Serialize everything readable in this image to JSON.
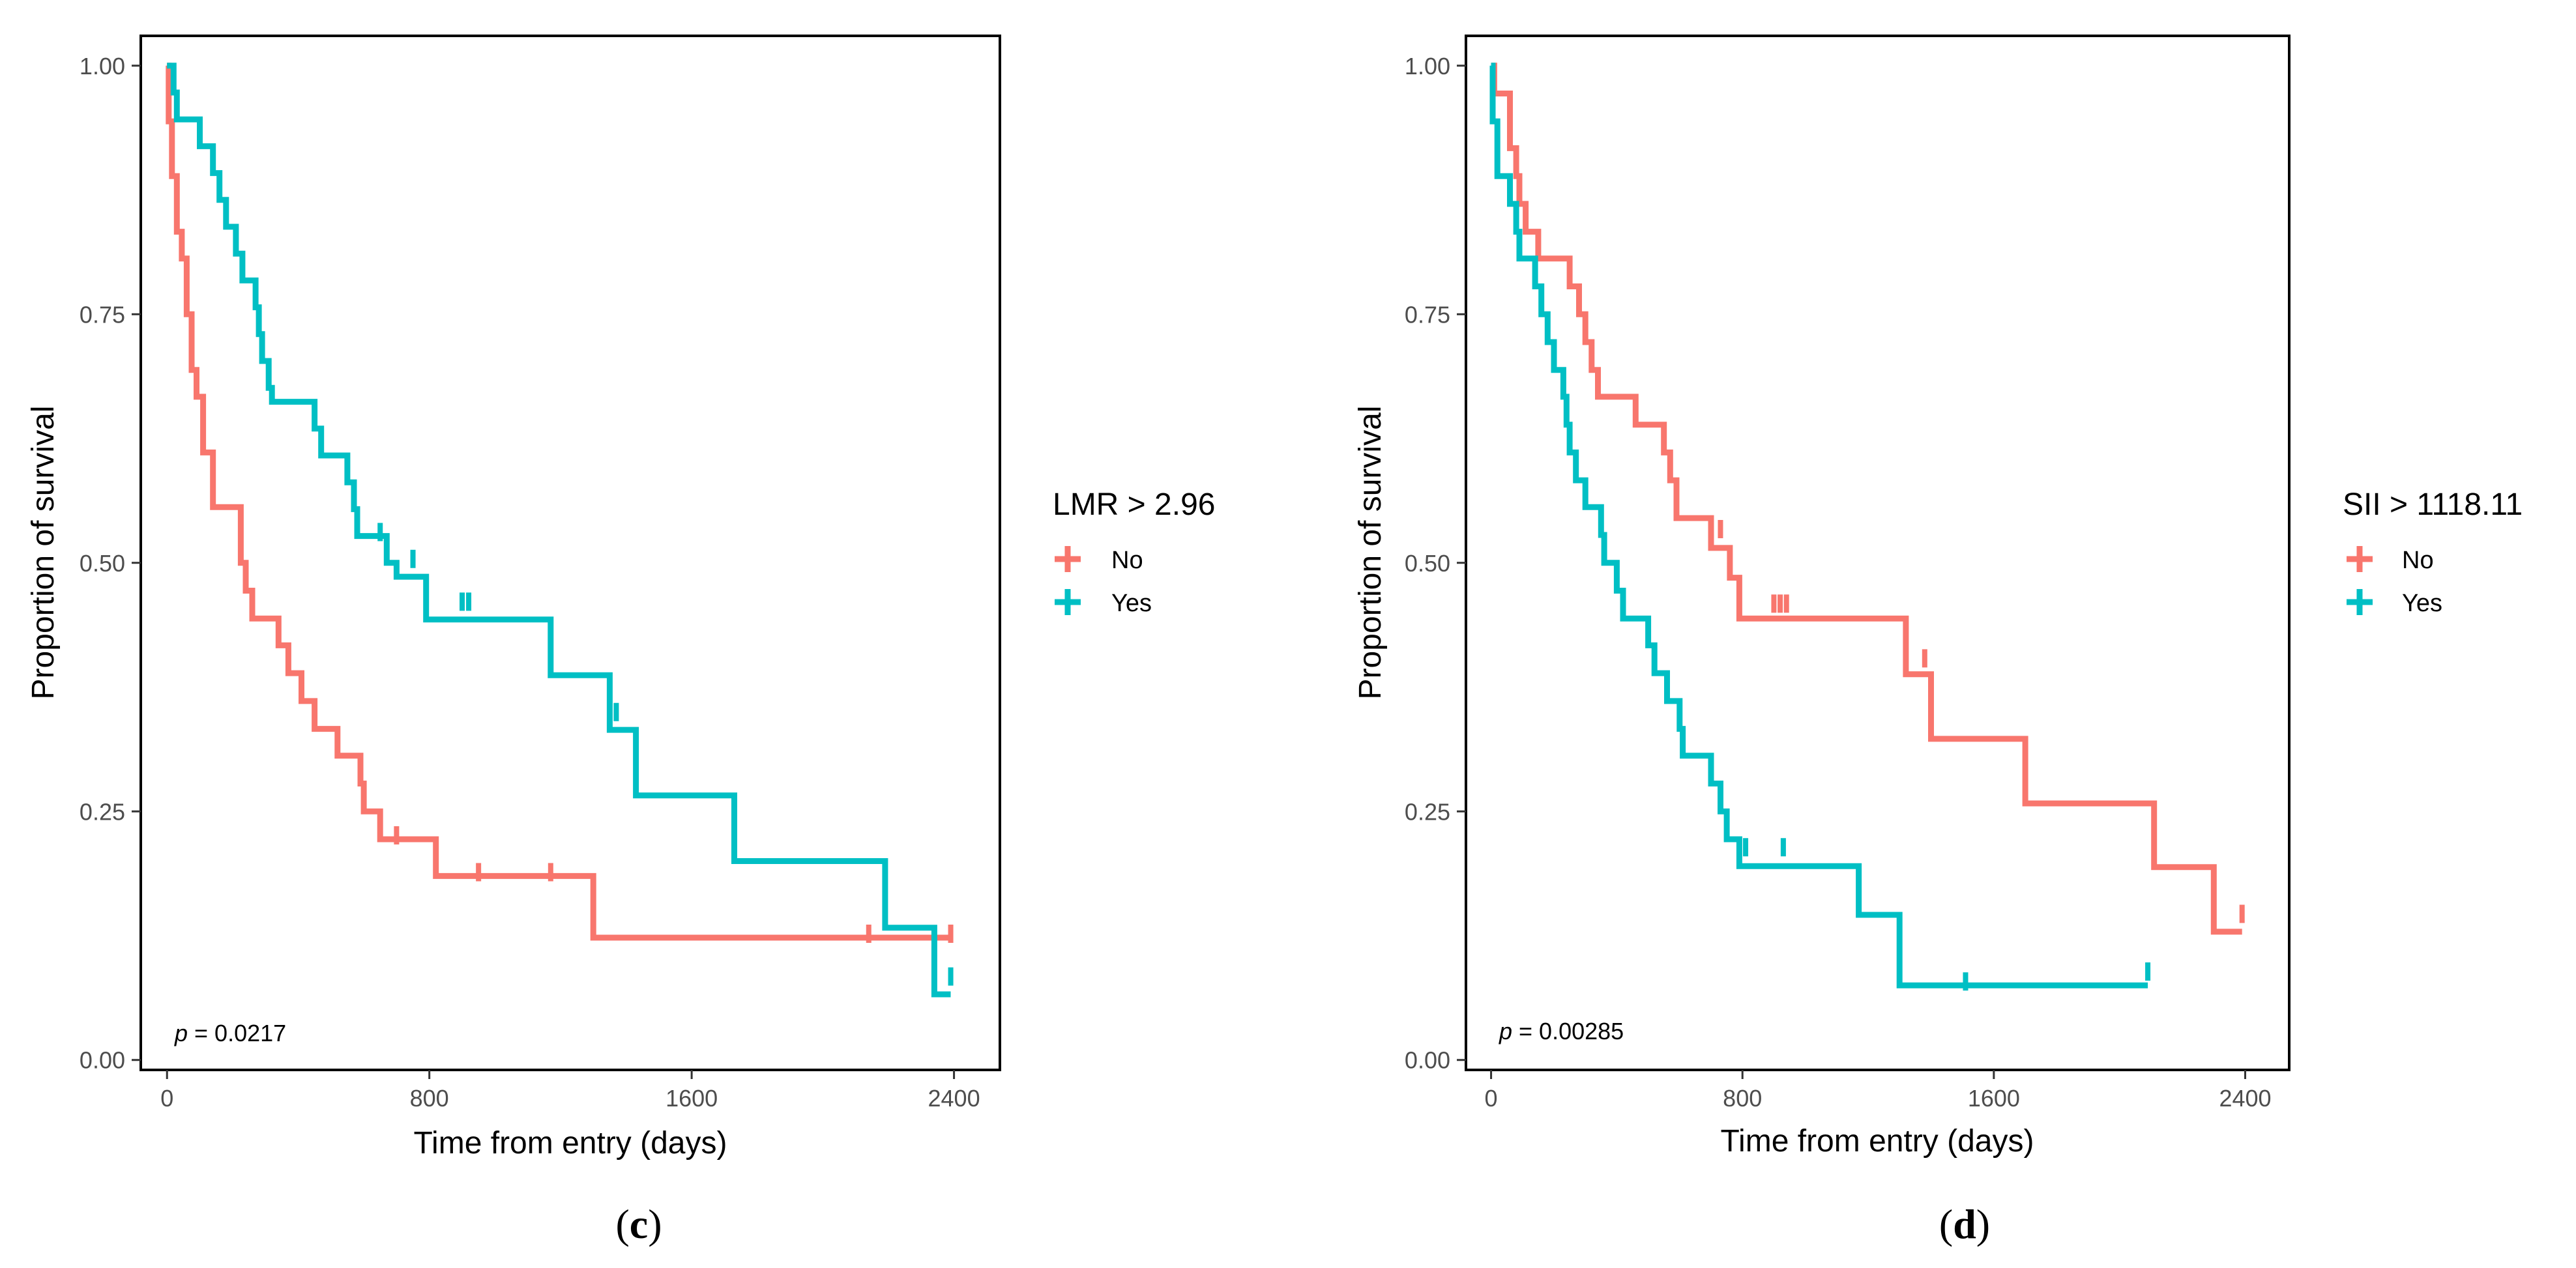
{
  "chart_data": [
    {
      "type": "line",
      "subtype": "kaplan-meier",
      "panel_label": "c",
      "xlabel": "Time from entry (days)",
      "ylabel": "Proportion of survival",
      "xlim": [
        -80,
        2540
      ],
      "ylim": [
        -0.01,
        1.03
      ],
      "xticks": [
        0,
        800,
        1600,
        2400
      ],
      "xtick_labels": [
        "0",
        "800",
        "1600",
        "2400"
      ],
      "yticks": [
        0,
        0.25,
        0.5,
        0.75,
        1
      ],
      "ytick_labels": [
        "0.00",
        "0.25",
        "0.50",
        "0.75",
        "1.00"
      ],
      "legend": {
        "title": "LMR > 2.96",
        "position": "right"
      },
      "pvalue": {
        "italic": "p",
        "text": " = 0.0217"
      },
      "series": [
        {
          "name": "No",
          "color": "#F8766D",
          "points": [
            [
              0,
              1.0
            ],
            [
              5,
              0.944
            ],
            [
              15,
              0.889
            ],
            [
              30,
              0.833
            ],
            [
              45,
              0.806
            ],
            [
              60,
              0.75
            ],
            [
              75,
              0.694
            ],
            [
              90,
              0.667
            ],
            [
              110,
              0.611
            ],
            [
              140,
              0.556
            ],
            [
              225,
              0.5
            ],
            [
              240,
              0.472
            ],
            [
              260,
              0.444
            ],
            [
              340,
              0.417
            ],
            [
              370,
              0.389
            ],
            [
              410,
              0.361
            ],
            [
              450,
              0.333
            ],
            [
              520,
              0.306
            ],
            [
              590,
              0.278
            ],
            [
              600,
              0.25
            ],
            [
              650,
              0.222
            ],
            [
              820,
              0.185
            ],
            [
              1300,
              0.123
            ],
            [
              2390,
              0.123
            ]
          ],
          "censors": [
            [
              700,
              0.222
            ],
            [
              950,
              0.185
            ],
            [
              1170,
              0.185
            ],
            [
              2140,
              0.123
            ],
            [
              2390,
              0.123
            ]
          ]
        },
        {
          "name": "Yes",
          "color": "#00BFC4",
          "points": [
            [
              0,
              1.0
            ],
            [
              20,
              0.973
            ],
            [
              30,
              0.946
            ],
            [
              100,
              0.919
            ],
            [
              140,
              0.892
            ],
            [
              160,
              0.865
            ],
            [
              180,
              0.838
            ],
            [
              210,
              0.811
            ],
            [
              230,
              0.784
            ],
            [
              270,
              0.757
            ],
            [
              280,
              0.73
            ],
            [
              290,
              0.703
            ],
            [
              310,
              0.676
            ],
            [
              320,
              0.662
            ],
            [
              450,
              0.635
            ],
            [
              470,
              0.608
            ],
            [
              550,
              0.581
            ],
            [
              570,
              0.554
            ],
            [
              580,
              0.527
            ],
            [
              670,
              0.5
            ],
            [
              700,
              0.486
            ],
            [
              790,
              0.443
            ],
            [
              1170,
              0.387
            ],
            [
              1350,
              0.332
            ],
            [
              1430,
              0.266
            ],
            [
              1730,
              0.2
            ],
            [
              2190,
              0.133
            ],
            [
              2340,
              0.066
            ],
            [
              2390,
              0.066
            ]
          ],
          "censors": [
            [
              650,
              0.527
            ],
            [
              750,
              0.5
            ],
            [
              900,
              0.457
            ],
            [
              920,
              0.457
            ],
            [
              1370,
              0.346
            ],
            [
              2390,
              0.08
            ]
          ]
        }
      ]
    },
    {
      "type": "line",
      "subtype": "kaplan-meier",
      "panel_label": "d",
      "xlabel": "Time from entry (days)",
      "ylabel": "Proportion of survival",
      "xlim": [
        -80,
        2540
      ],
      "ylim": [
        -0.01,
        1.03
      ],
      "xticks": [
        0,
        800,
        1600,
        2400
      ],
      "xtick_labels": [
        "0",
        "800",
        "1600",
        "2400"
      ],
      "yticks": [
        0,
        0.25,
        0.5,
        0.75,
        1
      ],
      "ytick_labels": [
        "0.00",
        "0.25",
        "0.50",
        "0.75",
        "1.00"
      ],
      "legend": {
        "title": "SII > 1118.11",
        "position": "right"
      },
      "pvalue": {
        "italic": "p",
        "text": " = 0.00285"
      },
      "series": [
        {
          "name": "No",
          "color": "#F8766D",
          "points": [
            [
              0,
              1.0
            ],
            [
              10,
              0.972
            ],
            [
              60,
              0.917
            ],
            [
              80,
              0.889
            ],
            [
              90,
              0.861
            ],
            [
              110,
              0.833
            ],
            [
              150,
              0.806
            ],
            [
              250,
              0.778
            ],
            [
              280,
              0.75
            ],
            [
              300,
              0.722
            ],
            [
              320,
              0.694
            ],
            [
              340,
              0.667
            ],
            [
              460,
              0.639
            ],
            [
              550,
              0.611
            ],
            [
              570,
              0.583
            ],
            [
              590,
              0.545
            ],
            [
              700,
              0.515
            ],
            [
              760,
              0.485
            ],
            [
              790,
              0.444
            ],
            [
              1320,
              0.388
            ],
            [
              1400,
              0.323
            ],
            [
              1700,
              0.258
            ],
            [
              2110,
              0.194
            ],
            [
              2300,
              0.129
            ],
            [
              2390,
              0.129
            ]
          ],
          "censors": [
            [
              730,
              0.53
            ],
            [
              900,
              0.455
            ],
            [
              920,
              0.455
            ],
            [
              940,
              0.455
            ],
            [
              1380,
              0.4
            ],
            [
              2390,
              0.143
            ]
          ]
        },
        {
          "name": "Yes",
          "color": "#00BFC4",
          "points": [
            [
              0,
              1.0
            ],
            [
              5,
              0.944
            ],
            [
              20,
              0.889
            ],
            [
              60,
              0.861
            ],
            [
              80,
              0.833
            ],
            [
              90,
              0.806
            ],
            [
              140,
              0.778
            ],
            [
              160,
              0.75
            ],
            [
              180,
              0.722
            ],
            [
              200,
              0.694
            ],
            [
              230,
              0.667
            ],
            [
              240,
              0.639
            ],
            [
              250,
              0.611
            ],
            [
              270,
              0.583
            ],
            [
              300,
              0.556
            ],
            [
              350,
              0.528
            ],
            [
              360,
              0.5
            ],
            [
              400,
              0.472
            ],
            [
              420,
              0.444
            ],
            [
              500,
              0.417
            ],
            [
              520,
              0.389
            ],
            [
              560,
              0.361
            ],
            [
              600,
              0.333
            ],
            [
              610,
              0.306
            ],
            [
              700,
              0.278
            ],
            [
              730,
              0.25
            ],
            [
              750,
              0.222
            ],
            [
              790,
              0.195
            ],
            [
              1170,
              0.146
            ],
            [
              1300,
              0.075
            ],
            [
              2090,
              0.075
            ]
          ],
          "censors": [
            [
              810,
              0.21
            ],
            [
              930,
              0.21
            ],
            [
              1510,
              0.075
            ],
            [
              2090,
              0.085
            ]
          ]
        }
      ]
    }
  ]
}
